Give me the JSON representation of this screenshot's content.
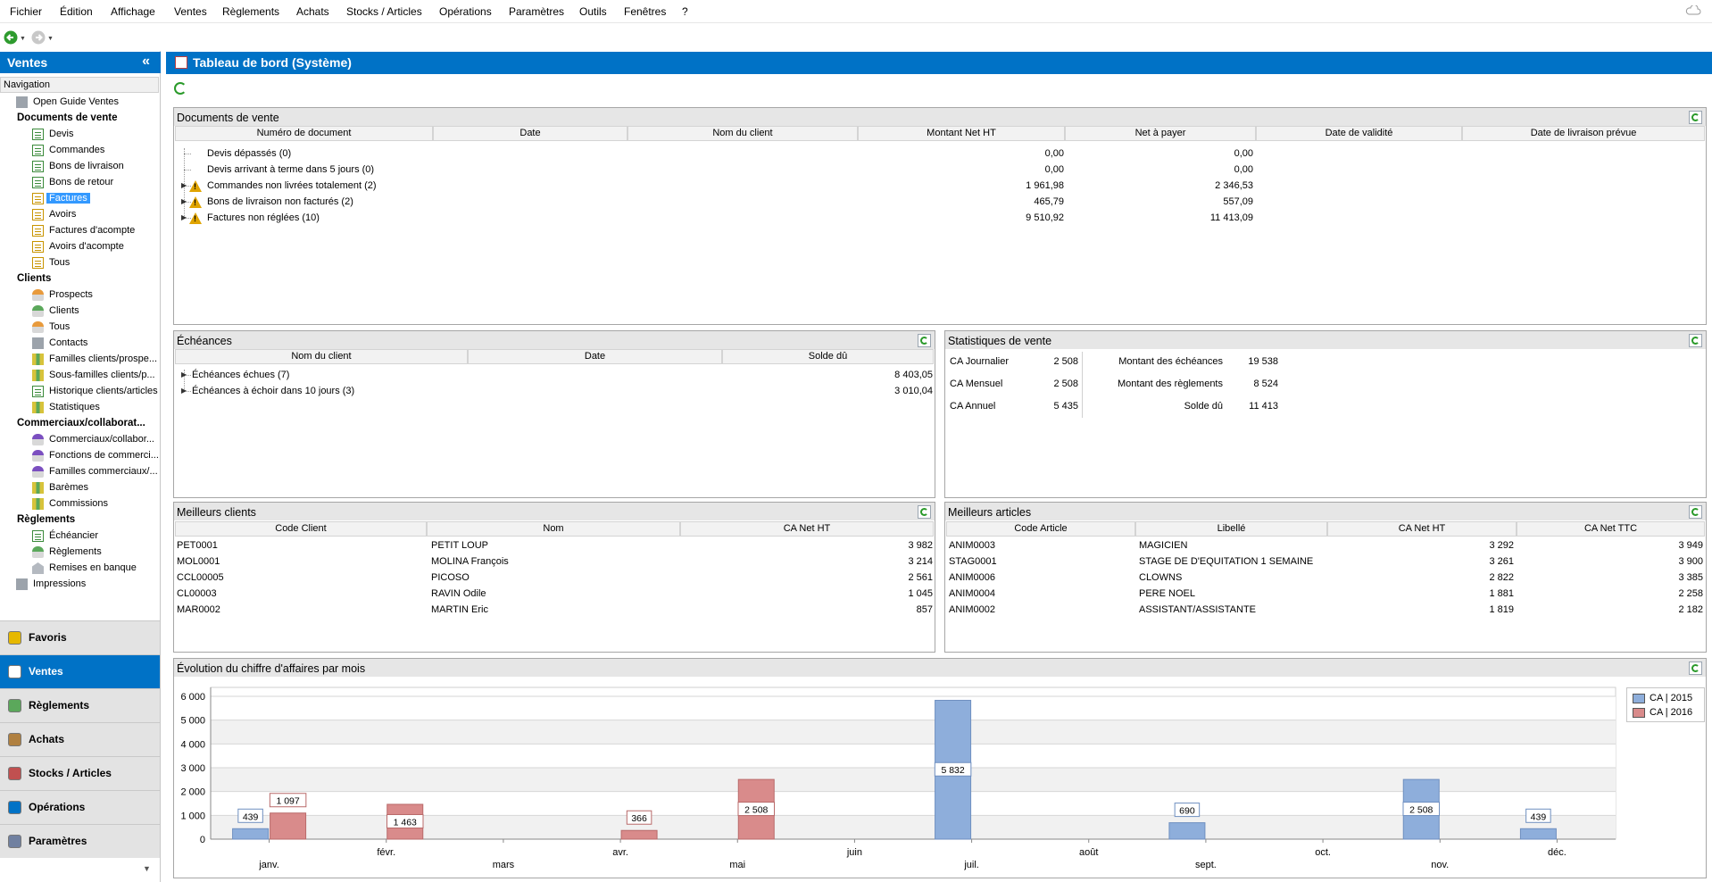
{
  "menu": [
    "Fichier",
    "Édition",
    "Affichage",
    "Ventes",
    "Règlements",
    "Achats",
    "Stocks / Articles",
    "Opérations",
    "Paramètres",
    "Outils",
    "Fenêtres",
    "?"
  ],
  "colors": {
    "accent": "#0072c6",
    "bar2015": "#8eaedb",
    "bar2016": "#d98b8b",
    "warning": "#e0a400"
  },
  "left": {
    "title": "Ventes",
    "collapse_icon": "«",
    "nav_label": "Navigation",
    "tree": [
      {
        "label": "Open Guide Ventes",
        "icon": "guide-icon",
        "level": 1
      },
      {
        "label": "Documents de vente",
        "group": true
      },
      {
        "label": "Devis",
        "icon": "document-icon",
        "level": 2
      },
      {
        "label": "Commandes",
        "icon": "document-icon",
        "level": 2
      },
      {
        "label": "Bons de livraison",
        "icon": "document-icon",
        "level": 2
      },
      {
        "label": "Bons de retour",
        "icon": "document-icon",
        "level": 2
      },
      {
        "label": "Factures",
        "icon": "document-yellow-icon",
        "level": 2,
        "selected": true
      },
      {
        "label": "Avoirs",
        "icon": "document-yellow-icon",
        "level": 2
      },
      {
        "label": "Factures d'acompte",
        "icon": "document-yellow-icon",
        "level": 2
      },
      {
        "label": "Avoirs d'acompte",
        "icon": "document-yellow-icon",
        "level": 2
      },
      {
        "label": "Tous",
        "icon": "document-yellow-icon",
        "level": 2
      },
      {
        "label": "Clients",
        "group": true
      },
      {
        "label": "Prospects",
        "icon": "person-orange-icon",
        "level": 2
      },
      {
        "label": "Clients",
        "icon": "person-green-icon",
        "level": 2
      },
      {
        "label": "Tous",
        "icon": "person-orange-icon",
        "level": 2
      },
      {
        "label": "Contacts",
        "icon": "contacts-icon",
        "level": 2
      },
      {
        "label": "Familles clients/prospe...",
        "icon": "families-icon",
        "level": 2
      },
      {
        "label": "Sous-familles clients/p...",
        "icon": "families-icon",
        "level": 2
      },
      {
        "label": "Historique clients/articles",
        "icon": "history-icon",
        "level": 2
      },
      {
        "label": "Statistiques",
        "icon": "statistics-icon",
        "level": 2
      },
      {
        "label": "Commerciaux/collaborat...",
        "group": true
      },
      {
        "label": "Commerciaux/collabor...",
        "icon": "person-purple-icon",
        "level": 2
      },
      {
        "label": "Fonctions de commerci...",
        "icon": "person-purple-icon",
        "level": 2
      },
      {
        "label": "Familles commerciaux/...",
        "icon": "person-purple-icon",
        "level": 2
      },
      {
        "label": "Barèmes",
        "icon": "statistics-icon",
        "level": 2
      },
      {
        "label": "Commissions",
        "icon": "statistics-icon",
        "level": 2
      },
      {
        "label": "Règlements",
        "group": true
      },
      {
        "label": "Échéancier",
        "icon": "calendar-icon",
        "level": 2
      },
      {
        "label": "Règlements",
        "icon": "payment-icon",
        "level": 2
      },
      {
        "label": "Remises en banque",
        "icon": "bank-icon",
        "level": 2
      },
      {
        "label": "Impressions",
        "icon": "printer-icon",
        "level": 1
      }
    ],
    "modules": [
      {
        "label": "Favoris",
        "icon": "star-icon"
      },
      {
        "label": "Ventes",
        "icon": "ventes-icon",
        "active": true
      },
      {
        "label": "Règlements",
        "icon": "payment-icon"
      },
      {
        "label": "Achats",
        "icon": "achats-icon"
      },
      {
        "label": "Stocks / Articles",
        "icon": "stocks-icon"
      },
      {
        "label": "Opérations",
        "icon": "operations-icon"
      },
      {
        "label": "Paramètres",
        "icon": "settings-icon"
      }
    ]
  },
  "main": {
    "title": "Tableau de bord (Système)"
  },
  "docs": {
    "title": "Documents de vente",
    "columns": [
      "Numéro de document",
      "Date",
      "Nom du client",
      "Montant Net HT",
      "Net à payer",
      "Date de validité",
      "Date de livraison prévue"
    ],
    "rows": [
      {
        "label": "Devis dépassés (0)",
        "ht": "0,00",
        "net": "0,00",
        "warn": false,
        "expand": false
      },
      {
        "label": "Devis arrivant à terme dans 5 jours (0)",
        "ht": "0,00",
        "net": "0,00",
        "warn": false,
        "expand": false
      },
      {
        "label": "Commandes non livrées totalement (2)",
        "ht": "1 961,98",
        "net": "2 346,53",
        "warn": true,
        "expand": true
      },
      {
        "label": "Bons de livraison non facturés (2)",
        "ht": "465,79",
        "net": "557,09",
        "warn": true,
        "expand": true
      },
      {
        "label": "Factures non réglées (10)",
        "ht": "9 510,92",
        "net": "11 413,09",
        "warn": true,
        "expand": true
      }
    ]
  },
  "echeances": {
    "title": "Échéances",
    "columns": [
      "Nom du client",
      "Date",
      "Solde dû"
    ],
    "rows": [
      {
        "label": "Échéances échues (7)",
        "solde": "8 403,05"
      },
      {
        "label": "Échéances à échoir dans 10 jours (3)",
        "solde": "3 010,04"
      }
    ]
  },
  "stats": {
    "title": "Statistiques de vente",
    "left": [
      {
        "label": "CA Journalier",
        "value": "2 508"
      },
      {
        "label": "CA Mensuel",
        "value": "2 508"
      },
      {
        "label": "CA Annuel",
        "value": "5 435"
      }
    ],
    "right": [
      {
        "label": "Montant des échéances",
        "value": "19 538"
      },
      {
        "label": "Montant des règlements",
        "value": "8 524"
      },
      {
        "label": "Solde dû",
        "value": "11 413"
      }
    ]
  },
  "clients": {
    "title": "Meilleurs clients",
    "columns": [
      "Code Client",
      "Nom",
      "CA Net HT"
    ],
    "rows": [
      [
        "PET0001",
        "PETIT LOUP",
        "3 982"
      ],
      [
        "MOL0001",
        "MOLINA François",
        "3 214"
      ],
      [
        "CCL00005",
        "PICOSO",
        "2 561"
      ],
      [
        "CL00003",
        "RAVIN Odile",
        "1 045"
      ],
      [
        "MAR0002",
        "MARTIN Eric",
        "857"
      ]
    ]
  },
  "articles": {
    "title": "Meilleurs articles",
    "columns": [
      "Code Article",
      "Libellé",
      "CA Net HT",
      "CA Net TTC"
    ],
    "rows": [
      [
        "ANIM0003",
        "MAGICIEN",
        "3 292",
        "3 949"
      ],
      [
        "STAG0001",
        "STAGE DE D'EQUITATION 1 SEMAINE",
        "3 261",
        "3 900"
      ],
      [
        "ANIM0006",
        "CLOWNS",
        "2 822",
        "3 385"
      ],
      [
        "ANIM0004",
        "PERE NOEL",
        "1 881",
        "2 258"
      ],
      [
        "ANIM0002",
        "ASSISTANT/ASSISTANTE",
        "1 819",
        "2 182"
      ]
    ]
  },
  "chart": {
    "title": "Évolution du chiffre d'affaires par mois"
  },
  "chart_data": {
    "type": "bar",
    "categories": [
      "janv.",
      "févr.",
      "mars",
      "avr.",
      "mai",
      "juin",
      "juil.",
      "août",
      "sept.",
      "oct.",
      "nov.",
      "déc."
    ],
    "series": [
      {
        "name": "CA | 2015",
        "values": [
          439,
          null,
          null,
          null,
          null,
          null,
          5832,
          null,
          690,
          null,
          2508,
          439
        ],
        "labels": [
          "439",
          null,
          null,
          null,
          null,
          null,
          "5 832",
          null,
          "690",
          null,
          "2 508",
          "439"
        ]
      },
      {
        "name": "CA | 2016",
        "values": [
          1097,
          1463,
          null,
          366,
          2508,
          null,
          null,
          null,
          null,
          null,
          null,
          null
        ],
        "labels": [
          "1 097",
          "1 463",
          null,
          "366",
          "2 508",
          null,
          null,
          null,
          null,
          null,
          null,
          null
        ]
      }
    ],
    "yticks": [
      "0",
      "1 000",
      "2 000",
      "3 000",
      "4 000",
      "5 000",
      "6 000"
    ],
    "ylim": [
      0,
      6000
    ],
    "legend": "right",
    "grid": true
  }
}
